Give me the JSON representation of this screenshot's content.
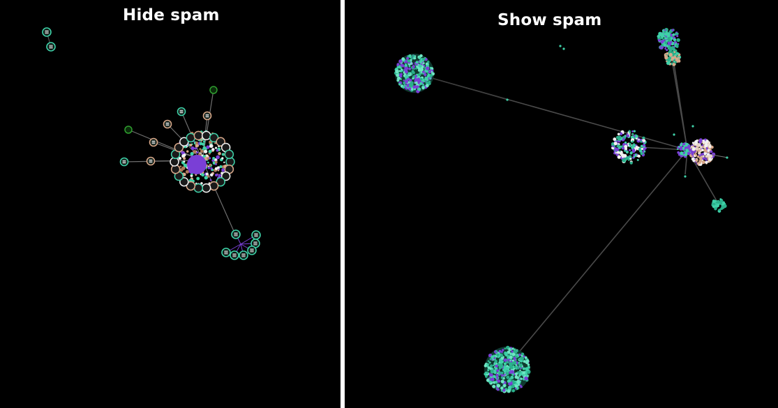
{
  "panels": {
    "left": {
      "title": "Hide spam"
    },
    "right": {
      "title": "Show spam"
    }
  },
  "colors": {
    "background": "#000000",
    "divider": "#ffffff",
    "node_teal": "#3fd1a8",
    "node_purple": "#7a3fd6",
    "node_tan": "#d9a88a",
    "node_white": "#f2f2f2",
    "node_green": "#2f9e2f",
    "edge": "#555555"
  }
}
